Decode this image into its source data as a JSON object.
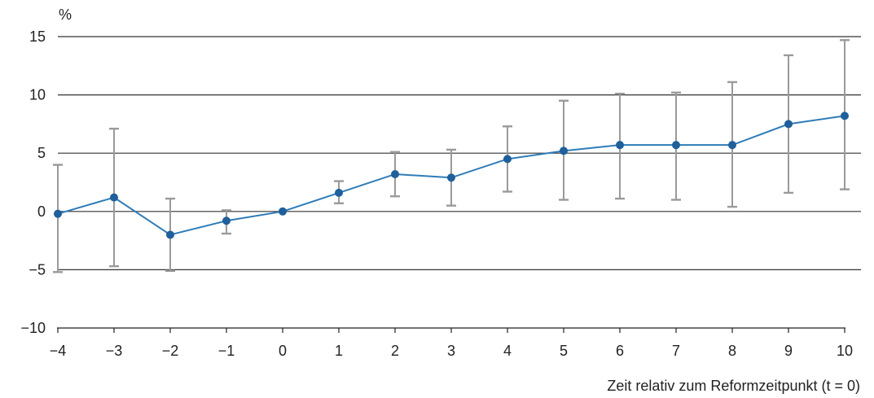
{
  "chart_data": {
    "type": "line",
    "title": "",
    "ylabel": "%",
    "xlabel": "Zeit relativ zum Reformzeitpunkt (t = 0)",
    "x": [
      -4,
      -3,
      -2,
      -1,
      0,
      1,
      2,
      3,
      4,
      5,
      6,
      7,
      8,
      9,
      10
    ],
    "x_tick_labels": [
      "−4",
      "−3",
      "−2",
      "−1",
      "0",
      "1",
      "2",
      "3",
      "4",
      "5",
      "6",
      "7",
      "8",
      "9",
      "10"
    ],
    "xlim": [
      -4,
      10
    ],
    "ylim": [
      -10,
      15
    ],
    "y_ticks": [
      -10,
      -5,
      0,
      5,
      10,
      15
    ],
    "y_tick_labels": [
      "−10",
      "−5",
      "0",
      "5",
      "10",
      "15"
    ],
    "grid": "horizontal",
    "series": [
      {
        "values": [
          -0.2,
          1.2,
          -2.0,
          -0.8,
          0.0,
          1.6,
          3.2,
          2.9,
          4.5,
          5.2,
          5.7,
          5.7,
          5.7,
          7.5,
          8.2
        ],
        "ci_lower": [
          -5.2,
          -4.7,
          -5.1,
          -1.9,
          0.0,
          0.7,
          1.3,
          0.5,
          1.7,
          1.0,
          1.1,
          1.0,
          0.4,
          1.6,
          1.9
        ],
        "ci_upper": [
          4.0,
          7.1,
          1.1,
          0.1,
          0.0,
          2.6,
          5.1,
          5.3,
          7.3,
          9.5,
          10.1,
          10.2,
          11.1,
          13.4,
          14.7
        ]
      }
    ],
    "colors": {
      "line": "#2e7cb8",
      "marker": "#1f5f9c",
      "error_bar": "#9a9a9a",
      "grid": "#333333"
    }
  }
}
